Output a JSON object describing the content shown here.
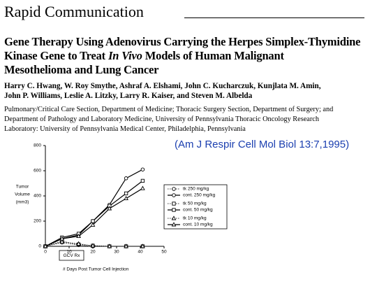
{
  "header": {
    "section": "Rapid Communication"
  },
  "title": {
    "line1": "Gene Therapy Using Adenovirus Carrying the Herpes Simplex-Thymidine",
    "line2": [
      "Kinase Gene to Treat",
      "In Vivo",
      "Models of Human Malignant"
    ],
    "line3": "Mesothelioma and Lung Cancer"
  },
  "authors": [
    "Harry C. Hwang, W. Roy Smythe, Ashraf A. Elshami, John C. Kucharczuk, Kunjlata M. Amin,",
    "John P. Williams, Leslie A. Litzky, Larry R. Kaiser, and Steven M. Albelda"
  ],
  "affiliation": [
    "Pulmonary/Critical Care Section, Department of Medicine; Thoracic Surgery Section, Department of Surgery; and",
    "Department of Pathology and Laboratory Medicine, University of Pennsylvania Thoracic Oncology Research",
    "Laboratory: University of Pennsylvania Medical Center, Philadelphia, Pennsylvania"
  ],
  "citation": "(Am J Respir Cell Mol Biol 13:7,1995)",
  "chart_data": {
    "type": "line",
    "ylabel": [
      "Tumor",
      "Volume",
      "(mm3)"
    ],
    "xlabel": "# Days Post Tumor Cell Injection",
    "annotation": "GCV Rx",
    "x": [
      0,
      7,
      14,
      20,
      27,
      34,
      41
    ],
    "xlim": [
      0,
      50
    ],
    "xticks": [
      0,
      10,
      20,
      30,
      40,
      50
    ],
    "ylim": [
      0,
      800
    ],
    "yticks": [
      0,
      200,
      400,
      600,
      800
    ],
    "series": [
      {
        "name": "tk 250 mg/kg",
        "color": "#000000",
        "marker": "circle",
        "dash": true,
        "values": [
          0,
          30,
          10,
          0,
          0,
          0,
          0
        ]
      },
      {
        "name": "cont. 250 mg/kg",
        "color": "#000000",
        "marker": "circle",
        "dash": false,
        "values": [
          0,
          60,
          90,
          200,
          330,
          540,
          610
        ]
      },
      {
        "name": "tk 50 mg/kg",
        "color": "#000000",
        "marker": "square",
        "dash": true,
        "values": [
          0,
          40,
          15,
          5,
          0,
          0,
          0
        ]
      },
      {
        "name": "cont. 50 mg/kg",
        "color": "#000000",
        "marker": "square",
        "dash": false,
        "values": [
          0,
          70,
          100,
          200,
          320,
          420,
          520
        ]
      },
      {
        "name": "tk 10 mg/kg",
        "color": "#000000",
        "marker": "triangle",
        "dash": true,
        "values": [
          0,
          35,
          20,
          5,
          0,
          0,
          0
        ]
      },
      {
        "name": "cont. 10 mg/kg",
        "color": "#000000",
        "marker": "triangle",
        "dash": false,
        "values": [
          0,
          60,
          80,
          170,
          300,
          380,
          460
        ]
      }
    ]
  }
}
